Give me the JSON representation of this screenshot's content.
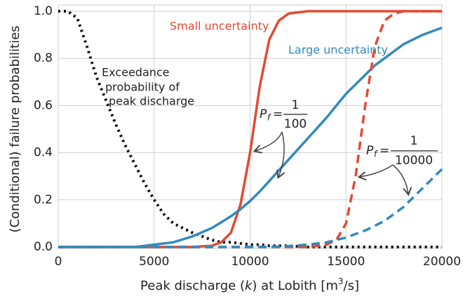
{
  "chart_data": {
    "type": "line",
    "x": [
      0,
      500,
      1000,
      1500,
      2000,
      2500,
      3000,
      3500,
      4000,
      4500,
      5000,
      5500,
      6000,
      7000,
      8000,
      8500,
      9000,
      9500,
      10000,
      10500,
      11000,
      11500,
      12000,
      13000,
      14000,
      14500,
      15000,
      15500,
      16000,
      16500,
      17000,
      17500,
      18000,
      19000,
      20000
    ],
    "series": [
      {
        "name": "Exceedance",
        "color": "#111111",
        "dash": "3,5",
        "values": [
          1,
          1,
          0.97,
          0.85,
          0.72,
          0.62,
          0.52,
          0.43,
          0.35,
          0.27,
          0.2,
          0.14,
          0.1,
          0.06,
          0.03,
          0.02,
          0.02,
          0.015,
          0.01,
          0.01,
          0.005,
          0.005,
          0.005,
          0,
          0,
          0,
          0,
          0,
          0,
          0,
          0,
          0,
          0,
          0,
          0
        ]
      },
      {
        "name": "Small uncertainty",
        "color": "#e24a33",
        "dash": "none",
        "values": [
          0,
          0,
          0,
          0,
          0,
          0,
          0,
          0,
          0,
          0,
          0,
          0,
          0,
          0,
          0.005,
          0.02,
          0.06,
          0.18,
          0.4,
          0.68,
          0.88,
          0.96,
          0.99,
          1,
          1,
          1,
          1,
          1,
          1,
          1,
          1,
          1,
          1,
          1,
          1
        ]
      },
      {
        "name": "Large uncertainty",
        "color": "#348abd",
        "dash": "none",
        "values": [
          0,
          0,
          0,
          0,
          0,
          0,
          0,
          0,
          0,
          0.005,
          0.01,
          0.015,
          0.02,
          0.045,
          0.08,
          0.105,
          0.13,
          0.16,
          0.195,
          0.235,
          0.28,
          0.325,
          0.37,
          0.46,
          0.55,
          0.6,
          0.65,
          0.69,
          0.73,
          0.77,
          0.8,
          0.83,
          0.86,
          0.9,
          0.93
        ]
      },
      {
        "name": "Small uncertainty 1/10000",
        "color": "#e24a33",
        "dash": "12,7",
        "values": [
          0,
          0,
          0,
          0,
          0,
          0,
          0,
          0,
          0,
          0,
          0,
          0,
          0,
          0,
          0,
          0,
          0,
          0,
          0,
          0,
          0,
          0,
          0,
          0,
          0.01,
          0.03,
          0.1,
          0.3,
          0.6,
          0.85,
          0.96,
          0.99,
          1,
          1,
          1
        ]
      },
      {
        "name": "Large uncertainty 1/10000",
        "color": "#348abd",
        "dash": "12,7",
        "values": [
          0,
          0,
          0,
          0,
          0,
          0,
          0,
          0,
          0,
          0,
          0,
          0,
          0,
          0,
          0,
          0,
          0,
          0,
          0,
          0,
          0,
          0.002,
          0.004,
          0.01,
          0.02,
          0.03,
          0.04,
          0.055,
          0.07,
          0.09,
          0.11,
          0.14,
          0.17,
          0.25,
          0.33
        ]
      }
    ],
    "xlim": [
      0,
      20000
    ],
    "xticks": [
      0,
      5000,
      10000,
      15000,
      20000
    ],
    "ylim": [
      0,
      1
    ],
    "yticks": [
      {
        "value": 0,
        "label": "0.0"
      },
      0.2,
      0.4,
      0.6,
      0.8,
      {
        "value": 1,
        "label": "1.0"
      }
    ],
    "grid": true,
    "x_label": [
      "Peak discharge (",
      "k",
      ") at Lobith [m",
      "3",
      "/s]"
    ],
    "y_label": "(Conditional) failure probabilities",
    "annotations": {
      "small": "Small uncertainty",
      "large": "Large uncertainty",
      "exceedance": [
        "Exceedance",
        "probability of",
        "peak discharge"
      ],
      "pf1": [
        "P",
        "f",
        "=",
        "1",
        "100"
      ],
      "pf2": [
        "P",
        "f",
        "=",
        "1",
        "10000"
      ]
    }
  }
}
